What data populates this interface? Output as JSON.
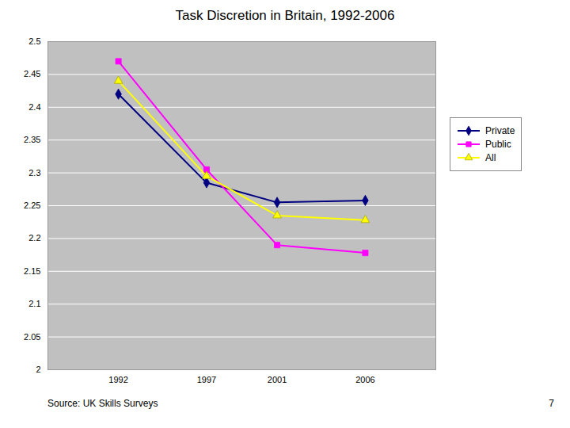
{
  "chart_data": {
    "type": "line",
    "title": "Task Discretion in Britain, 1992-2006",
    "annotations": [
      "Source: UK Skills Surveys",
      "7"
    ],
    "x": [
      1992,
      1997,
      2001,
      2006
    ],
    "series": [
      {
        "name": "Private",
        "color": "#000080",
        "marker": "diamond",
        "values": [
          2.42,
          2.285,
          2.255,
          2.258
        ]
      },
      {
        "name": "Public",
        "color": "#FF00FF",
        "marker": "square",
        "values": [
          2.47,
          2.305,
          2.19,
          2.178
        ]
      },
      {
        "name": "All",
        "color": "#FFFF00",
        "marker": "triangle",
        "values": [
          2.44,
          2.295,
          2.235,
          2.228
        ]
      }
    ],
    "xlim": [
      1988,
      2010
    ],
    "xticks": [
      1992,
      1997,
      2001,
      2006
    ],
    "ylim": [
      2,
      2.5
    ],
    "yticks": [
      2,
      2.05,
      2.1,
      2.15,
      2.2,
      2.25,
      2.3,
      2.35,
      2.4,
      2.45,
      2.5
    ],
    "grid": true,
    "legend": "right"
  }
}
